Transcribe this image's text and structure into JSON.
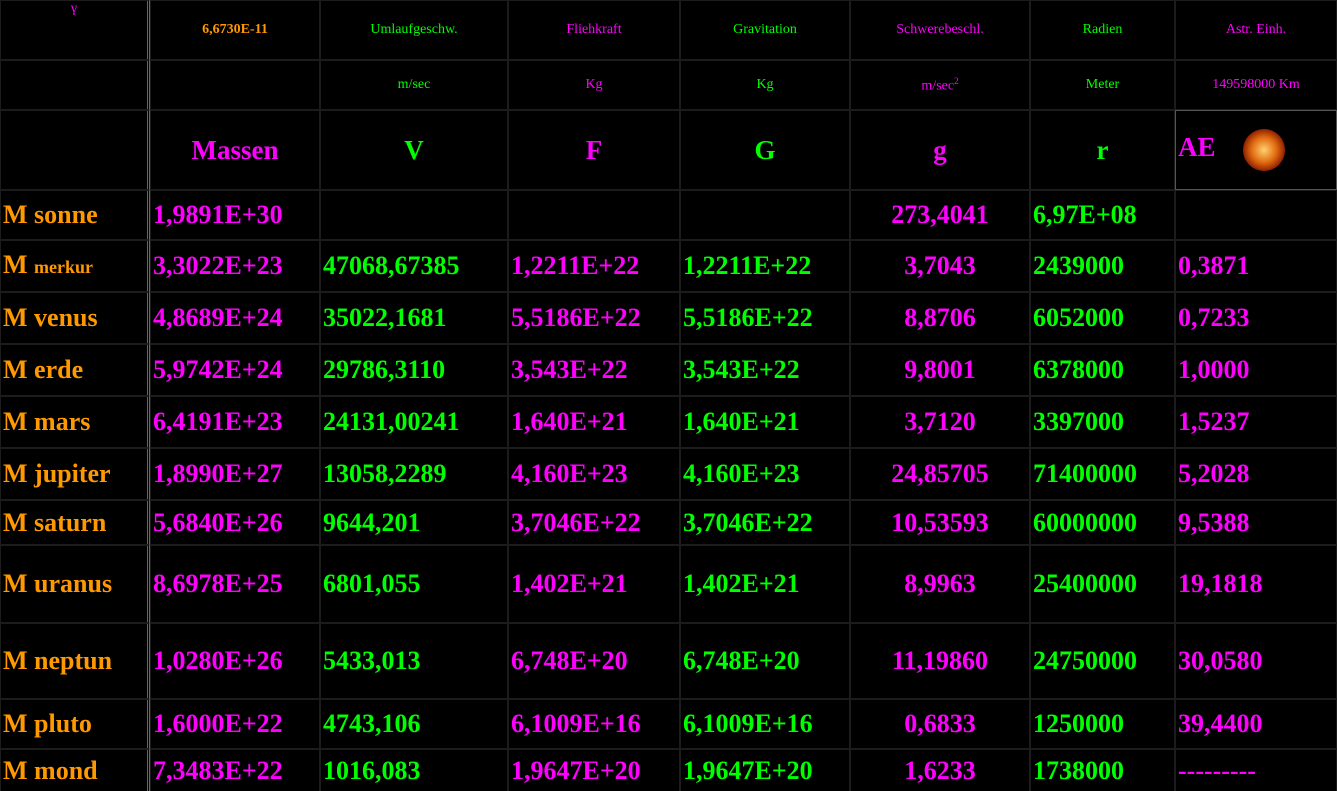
{
  "header": {
    "row1": [
      "γ",
      "6,6730E-11",
      "Umlaufgeschw.",
      "Fliehkraft",
      "Gravitation",
      "Schwerebeschl.",
      "Radien",
      "Astr. Einh."
    ],
    "units": [
      "m/sec",
      "Kg",
      "Kg",
      "m/sec",
      "Meter",
      "149598000 Km"
    ],
    "unit_power": "2",
    "symbols": [
      "Massen",
      "V",
      "F",
      "G",
      "g",
      "r",
      "AE"
    ]
  },
  "table": {
    "rows": [
      {
        "prefix": "M",
        "name": "sonne",
        "cells": [
          "1,9891E+30",
          null,
          null,
          null,
          "273,4041",
          "6,97E+08",
          null
        ]
      },
      {
        "prefix": "M",
        "name": "merkur",
        "cells": [
          "3,3022E+23",
          "47068,67385",
          "1,2211E+22",
          "1,2211E+22",
          "3,7043",
          "2439000",
          "0,3871"
        ]
      },
      {
        "prefix": "M",
        "name": "venus",
        "cells": [
          "4,8689E+24",
          "35022,1681",
          "5,5186E+22",
          "5,5186E+22",
          "8,8706",
          "6052000",
          "0,7233"
        ]
      },
      {
        "prefix": "M",
        "name": "erde",
        "cells": [
          "5,9742E+24",
          "29786,3110",
          "3,543E+22",
          "3,543E+22",
          "9,8001",
          "6378000",
          "1,0000"
        ]
      },
      {
        "prefix": "M",
        "name": "mars",
        "cells": [
          "6,4191E+23",
          "24131,00241",
          "1,640E+21",
          "1,640E+21",
          "3,7120",
          "3397000",
          "1,5237"
        ]
      },
      {
        "prefix": "M",
        "name": "jupiter",
        "cells": [
          "1,8990E+27",
          "13058,2289",
          "4,160E+23",
          "4,160E+23",
          "24,85705",
          "71400000",
          "5,2028"
        ]
      },
      {
        "prefix": "M",
        "name": "saturn",
        "cells": [
          "5,6840E+26",
          "9644,201",
          "3,7046E+22",
          "3,7046E+22",
          "10,53593",
          "60000000",
          "9,5388"
        ]
      },
      {
        "prefix": "M",
        "name": "uranus",
        "cells": [
          "8,6978E+25",
          "6801,055",
          "1,402E+21",
          "1,402E+21",
          "8,9963",
          "25400000",
          "19,1818"
        ]
      },
      {
        "prefix": "M",
        "name": "neptun",
        "cells": [
          "1,0280E+26",
          "5433,013",
          "6,748E+20",
          "6,748E+20",
          "11,19860",
          "24750000",
          "30,0580"
        ]
      },
      {
        "prefix": "M",
        "name": "pluto",
        "cells": [
          "1,6000E+22",
          "4743,106",
          "6,1009E+16",
          "6,1009E+16",
          "0,6833",
          "1250000",
          "39,4400"
        ]
      },
      {
        "prefix": "M",
        "name": "mond",
        "cells": [
          "7,3483E+22",
          "1016,083",
          "1,9647E+20",
          "1,9647E+20",
          "1,6233",
          "1738000",
          "---------"
        ]
      }
    ]
  }
}
